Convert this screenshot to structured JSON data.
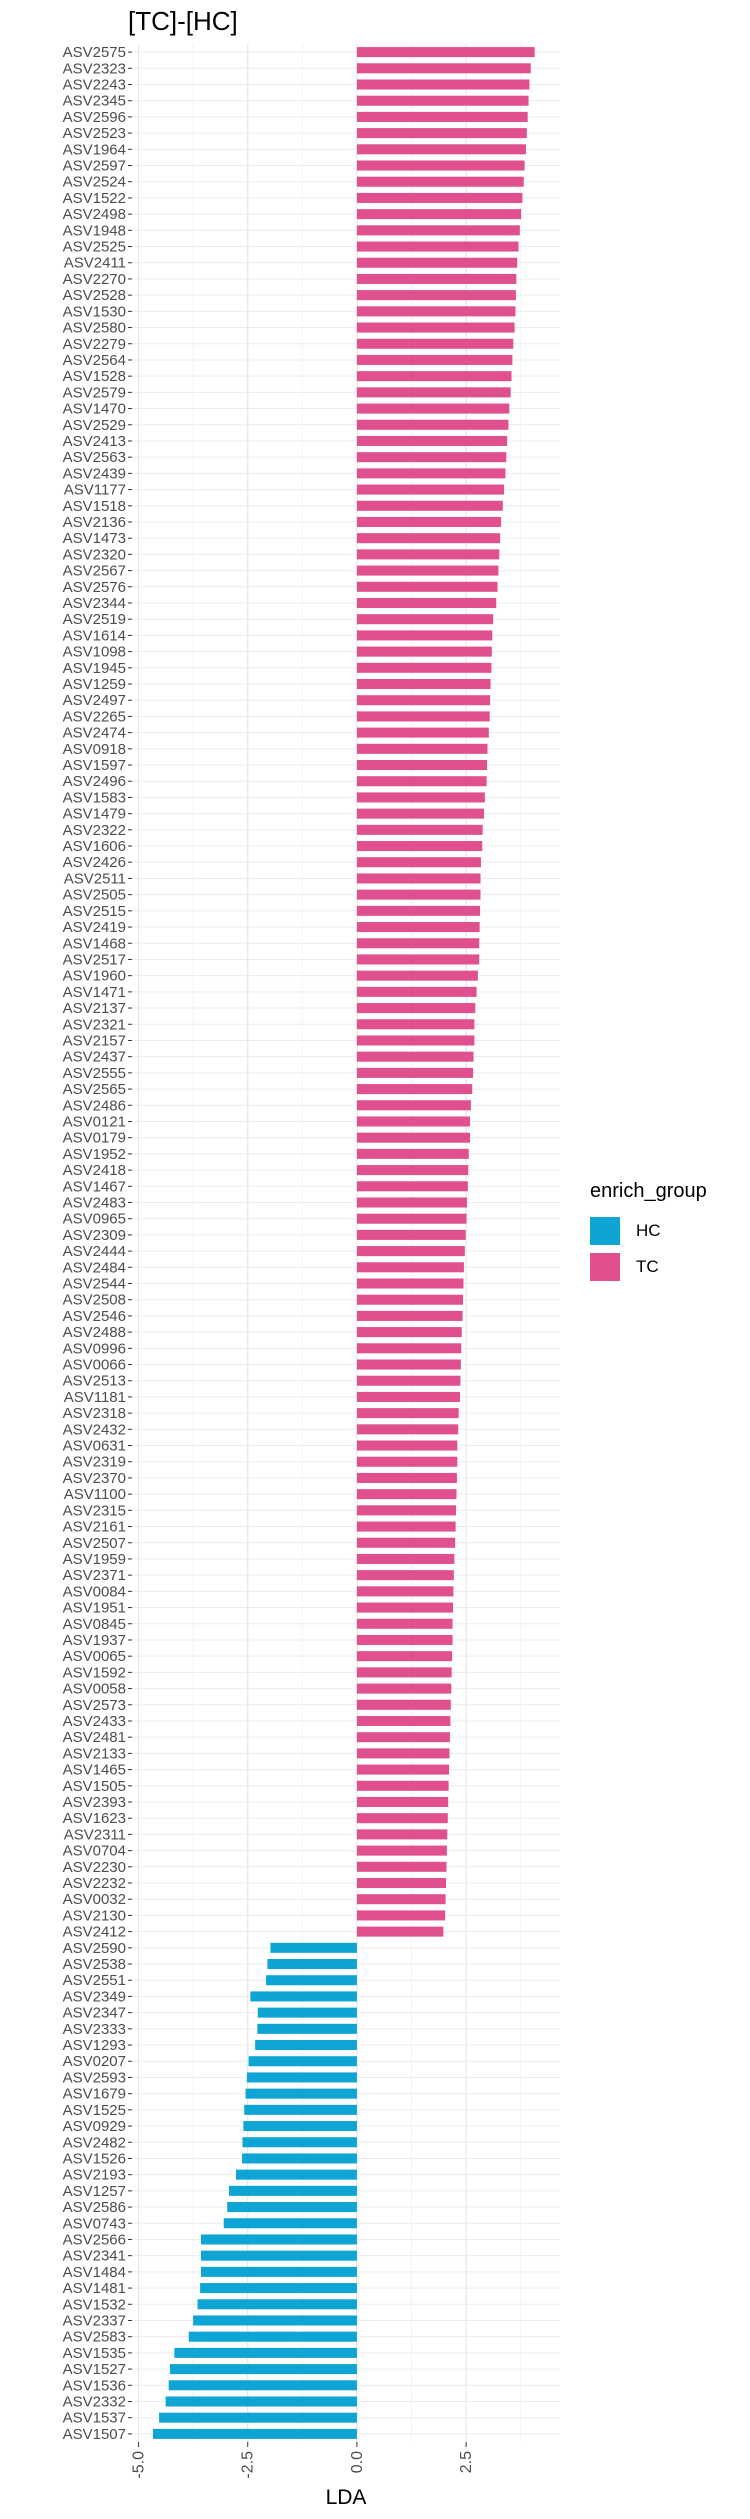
{
  "chart_data": {
    "type": "bar",
    "orientation": "horizontal",
    "title": "[TC]-[HC]",
    "xlabel": "LDA",
    "ylabel": "",
    "xlim": [
      -5.15,
      4.65
    ],
    "xticks": [
      -5.0,
      -2.5,
      0.0,
      2.5
    ],
    "xtick_labels": [
      "-5.0",
      "-2.5",
      "0.0",
      "2.5"
    ],
    "grid": true,
    "legend": {
      "title": "enrich_group",
      "position": "right",
      "entries": [
        {
          "label": "HC",
          "color": "#0ea5d4"
        },
        {
          "label": "TC",
          "color": "#e0508f"
        }
      ]
    },
    "colors": {
      "TC": "#e0508f",
      "HC": "#0ea5d4"
    },
    "categories": [
      "ASV2575",
      "ASV2323",
      "ASV2243",
      "ASV2345",
      "ASV2596",
      "ASV2523",
      "ASV1964",
      "ASV2597",
      "ASV2524",
      "ASV1522",
      "ASV2498",
      "ASV1948",
      "ASV2525",
      "ASV2411",
      "ASV2270",
      "ASV2528",
      "ASV1530",
      "ASV2580",
      "ASV2279",
      "ASV2564",
      "ASV1528",
      "ASV2579",
      "ASV1470",
      "ASV2529",
      "ASV2413",
      "ASV2563",
      "ASV2439",
      "ASV1177",
      "ASV1518",
      "ASV2136",
      "ASV1473",
      "ASV2320",
      "ASV2567",
      "ASV2576",
      "ASV2344",
      "ASV2519",
      "ASV1614",
      "ASV1098",
      "ASV1945",
      "ASV1259",
      "ASV2497",
      "ASV2265",
      "ASV2474",
      "ASV0918",
      "ASV1597",
      "ASV2496",
      "ASV1583",
      "ASV1479",
      "ASV2322",
      "ASV1606",
      "ASV2426",
      "ASV2511",
      "ASV2505",
      "ASV2515",
      "ASV2419",
      "ASV1468",
      "ASV2517",
      "ASV1960",
      "ASV1471",
      "ASV2137",
      "ASV2321",
      "ASV2157",
      "ASV2437",
      "ASV2555",
      "ASV2565",
      "ASV2486",
      "ASV0121",
      "ASV0179",
      "ASV1952",
      "ASV2418",
      "ASV1467",
      "ASV2483",
      "ASV0965",
      "ASV2309",
      "ASV2444",
      "ASV2484",
      "ASV2544",
      "ASV2508",
      "ASV2546",
      "ASV2488",
      "ASV0996",
      "ASV0066",
      "ASV2513",
      "ASV1181",
      "ASV2318",
      "ASV2432",
      "ASV0631",
      "ASV2319",
      "ASV2370",
      "ASV1100",
      "ASV2315",
      "ASV2161",
      "ASV2507",
      "ASV1959",
      "ASV2371",
      "ASV0084",
      "ASV1951",
      "ASV0845",
      "ASV1937",
      "ASV0065",
      "ASV1592",
      "ASV0058",
      "ASV2573",
      "ASV2433",
      "ASV2481",
      "ASV2133",
      "ASV1465",
      "ASV1505",
      "ASV2393",
      "ASV1623",
      "ASV2311",
      "ASV0704",
      "ASV2230",
      "ASV2232",
      "ASV0032",
      "ASV2130",
      "ASV2412",
      "ASV2590",
      "ASV2538",
      "ASV2551",
      "ASV2349",
      "ASV2347",
      "ASV2333",
      "ASV1293",
      "ASV0207",
      "ASV2593",
      "ASV1679",
      "ASV1525",
      "ASV0929",
      "ASV2482",
      "ASV1526",
      "ASV2193",
      "ASV1257",
      "ASV2586",
      "ASV0743",
      "ASV2566",
      "ASV2341",
      "ASV1484",
      "ASV1481",
      "ASV1532",
      "ASV2337",
      "ASV2583",
      "ASV1535",
      "ASV1527",
      "ASV1536",
      "ASV2332",
      "ASV1537",
      "ASV1507"
    ],
    "values": [
      4.07,
      3.98,
      3.95,
      3.93,
      3.91,
      3.89,
      3.87,
      3.84,
      3.82,
      3.79,
      3.76,
      3.73,
      3.7,
      3.67,
      3.65,
      3.64,
      3.63,
      3.61,
      3.58,
      3.56,
      3.54,
      3.52,
      3.49,
      3.47,
      3.44,
      3.42,
      3.4,
      3.37,
      3.34,
      3.3,
      3.28,
      3.26,
      3.24,
      3.22,
      3.19,
      3.12,
      3.1,
      3.09,
      3.08,
      3.06,
      3.05,
      3.04,
      3.02,
      2.99,
      2.98,
      2.97,
      2.93,
      2.91,
      2.88,
      2.87,
      2.84,
      2.83,
      2.83,
      2.82,
      2.81,
      2.8,
      2.8,
      2.77,
      2.74,
      2.71,
      2.69,
      2.69,
      2.67,
      2.66,
      2.64,
      2.61,
      2.59,
      2.59,
      2.56,
      2.55,
      2.54,
      2.52,
      2.51,
      2.49,
      2.47,
      2.45,
      2.44,
      2.43,
      2.42,
      2.4,
      2.39,
      2.38,
      2.37,
      2.36,
      2.33,
      2.32,
      2.3,
      2.3,
      2.29,
      2.28,
      2.27,
      2.26,
      2.25,
      2.23,
      2.22,
      2.21,
      2.2,
      2.19,
      2.19,
      2.18,
      2.17,
      2.16,
      2.15,
      2.14,
      2.13,
      2.12,
      2.11,
      2.1,
      2.09,
      2.08,
      2.07,
      2.06,
      2.05,
      2.04,
      2.03,
      2.02,
      1.98,
      -1.98,
      -2.05,
      -2.08,
      -2.44,
      -2.27,
      -2.28,
      -2.33,
      -2.48,
      -2.52,
      -2.55,
      -2.58,
      -2.6,
      -2.62,
      -2.63,
      -2.77,
      -2.93,
      -2.97,
      -3.05,
      -3.57,
      -3.57,
      -3.57,
      -3.59,
      -3.65,
      -3.75,
      -3.85,
      -4.18,
      -4.28,
      -4.31,
      -4.38,
      -4.53,
      -4.67
    ],
    "groups": [
      "TC",
      "TC",
      "TC",
      "TC",
      "TC",
      "TC",
      "TC",
      "TC",
      "TC",
      "TC",
      "TC",
      "TC",
      "TC",
      "TC",
      "TC",
      "TC",
      "TC",
      "TC",
      "TC",
      "TC",
      "TC",
      "TC",
      "TC",
      "TC",
      "TC",
      "TC",
      "TC",
      "TC",
      "TC",
      "TC",
      "TC",
      "TC",
      "TC",
      "TC",
      "TC",
      "TC",
      "TC",
      "TC",
      "TC",
      "TC",
      "TC",
      "TC",
      "TC",
      "TC",
      "TC",
      "TC",
      "TC",
      "TC",
      "TC",
      "TC",
      "TC",
      "TC",
      "TC",
      "TC",
      "TC",
      "TC",
      "TC",
      "TC",
      "TC",
      "TC",
      "TC",
      "TC",
      "TC",
      "TC",
      "TC",
      "TC",
      "TC",
      "TC",
      "TC",
      "TC",
      "TC",
      "TC",
      "TC",
      "TC",
      "TC",
      "TC",
      "TC",
      "TC",
      "TC",
      "TC",
      "TC",
      "TC",
      "TC",
      "TC",
      "TC",
      "TC",
      "TC",
      "TC",
      "TC",
      "TC",
      "TC",
      "TC",
      "TC",
      "TC",
      "TC",
      "TC",
      "TC",
      "TC",
      "TC",
      "TC",
      "TC",
      "TC",
      "TC",
      "TC",
      "TC",
      "TC",
      "TC",
      "TC",
      "TC",
      "TC",
      "TC",
      "TC",
      "TC",
      "TC",
      "TC",
      "TC",
      "TC",
      "HC",
      "HC",
      "HC",
      "HC",
      "HC",
      "HC",
      "HC",
      "HC",
      "HC",
      "HC",
      "HC",
      "HC",
      "HC",
      "HC",
      "HC",
      "HC",
      "HC",
      "HC",
      "HC",
      "HC",
      "HC",
      "HC",
      "HC",
      "HC",
      "HC",
      "HC",
      "HC",
      "HC",
      "HC",
      "HC",
      "HC",
      "HC"
    ]
  }
}
